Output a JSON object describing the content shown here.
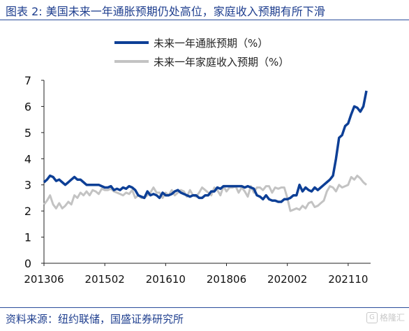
{
  "header": {
    "title": "图表 2:  美国未来一年通胀预期仍处高位，家庭收入预期有所下滑"
  },
  "footer": {
    "source": "资料来源：纽约联储，国盛证券研究所",
    "watermark_text": "格隆汇",
    "watermark_icon": "G"
  },
  "colors": {
    "title": "#1f3f8f",
    "inflation": "#0d3f96",
    "income": "#c3c3c3"
  },
  "chart_data": {
    "type": "line",
    "title": "",
    "xlabel": "",
    "ylabel": "",
    "ylim": [
      0,
      7
    ],
    "y_ticks": [
      0,
      1,
      2,
      3,
      4,
      5,
      6,
      7
    ],
    "grid": false,
    "legend_position": "top",
    "x_start": "2013-06",
    "x_end": "2022-04",
    "x_tick_labels": [
      "201306",
      "201502",
      "201610",
      "201806",
      "202002",
      "202110"
    ],
    "x": [
      "2013-06",
      "2013-07",
      "2013-08",
      "2013-09",
      "2013-10",
      "2013-11",
      "2013-12",
      "2014-01",
      "2014-02",
      "2014-03",
      "2014-04",
      "2014-05",
      "2014-06",
      "2014-07",
      "2014-08",
      "2014-09",
      "2014-10",
      "2014-11",
      "2014-12",
      "2015-01",
      "2015-02",
      "2015-03",
      "2015-04",
      "2015-05",
      "2015-06",
      "2015-07",
      "2015-08",
      "2015-09",
      "2015-10",
      "2015-11",
      "2015-12",
      "2016-01",
      "2016-02",
      "2016-03",
      "2016-04",
      "2016-05",
      "2016-06",
      "2016-07",
      "2016-08",
      "2016-09",
      "2016-10",
      "2016-11",
      "2016-12",
      "2017-01",
      "2017-02",
      "2017-03",
      "2017-04",
      "2017-05",
      "2017-06",
      "2017-07",
      "2017-08",
      "2017-09",
      "2017-10",
      "2017-11",
      "2017-12",
      "2018-01",
      "2018-02",
      "2018-03",
      "2018-04",
      "2018-05",
      "2018-06",
      "2018-07",
      "2018-08",
      "2018-09",
      "2018-10",
      "2018-11",
      "2018-12",
      "2019-01",
      "2019-02",
      "2019-03",
      "2019-04",
      "2019-05",
      "2019-06",
      "2019-07",
      "2019-08",
      "2019-09",
      "2019-10",
      "2019-11",
      "2019-12",
      "2020-01",
      "2020-02",
      "2020-03",
      "2020-04",
      "2020-05",
      "2020-06",
      "2020-07",
      "2020-08",
      "2020-09",
      "2020-10",
      "2020-11",
      "2020-12",
      "2021-01",
      "2021-02",
      "2021-03",
      "2021-04",
      "2021-05",
      "2021-06",
      "2021-07",
      "2021-08",
      "2021-09",
      "2021-10",
      "2021-11",
      "2021-12",
      "2022-01",
      "2022-02",
      "2022-03",
      "2022-04"
    ],
    "series": [
      {
        "name": "未来一年通胀预期（%）",
        "color": "#0d3f96",
        "values": [
          3.1,
          3.2,
          3.35,
          3.3,
          3.15,
          3.2,
          3.1,
          3.0,
          3.1,
          3.2,
          3.3,
          3.2,
          3.2,
          3.1,
          3.0,
          3.0,
          3.0,
          3.0,
          3.0,
          2.95,
          2.9,
          2.9,
          2.95,
          2.8,
          2.85,
          2.8,
          2.9,
          2.85,
          2.95,
          2.9,
          2.8,
          2.6,
          2.55,
          2.5,
          2.75,
          2.6,
          2.65,
          2.6,
          2.5,
          2.7,
          2.6,
          2.6,
          2.65,
          2.75,
          2.8,
          2.7,
          2.65,
          2.6,
          2.55,
          2.6,
          2.6,
          2.5,
          2.5,
          2.6,
          2.6,
          2.75,
          2.75,
          2.9,
          2.85,
          2.95,
          2.95,
          2.95,
          2.95,
          2.95,
          2.95,
          2.95,
          2.9,
          2.95,
          2.9,
          2.85,
          2.6,
          2.55,
          2.45,
          2.6,
          2.45,
          2.4,
          2.4,
          2.35,
          2.35,
          2.45,
          2.45,
          2.5,
          2.6,
          2.6,
          3.0,
          2.75,
          2.9,
          2.8,
          2.75,
          2.9,
          2.8,
          2.9,
          3.0,
          3.1,
          3.2,
          3.35,
          4.0,
          4.8,
          4.9,
          5.25,
          5.35,
          5.7,
          6.0,
          5.95,
          5.8,
          6.0,
          6.6
        ]
      },
      {
        "name": "未来一年家庭收入预期（%）",
        "color": "#c3c3c3",
        "values": [
          2.25,
          2.4,
          2.6,
          2.25,
          2.1,
          2.3,
          2.1,
          2.2,
          2.35,
          2.25,
          2.6,
          2.5,
          2.7,
          2.6,
          2.75,
          2.6,
          2.8,
          2.75,
          2.65,
          2.85,
          2.8,
          2.8,
          2.85,
          2.75,
          2.7,
          2.65,
          2.6,
          2.7,
          2.65,
          2.8,
          2.5,
          2.6,
          2.5,
          2.5,
          2.6,
          2.7,
          2.9,
          2.7,
          2.7,
          2.5,
          2.7,
          2.6,
          2.8,
          2.6,
          2.7,
          2.8,
          2.75,
          2.55,
          2.8,
          2.6,
          2.55,
          2.7,
          2.9,
          2.8,
          2.7,
          2.6,
          2.9,
          2.8,
          2.6,
          2.95,
          2.75,
          2.9,
          2.9,
          2.95,
          2.7,
          2.9,
          2.75,
          2.55,
          2.95,
          2.7,
          2.9,
          2.9,
          2.8,
          2.95,
          2.95,
          2.7,
          2.9,
          2.85,
          2.9,
          2.9,
          2.5,
          2.0,
          2.05,
          2.1,
          2.05,
          2.2,
          2.1,
          2.3,
          2.35,
          2.15,
          2.2,
          2.3,
          2.4,
          2.75,
          2.95,
          2.9,
          2.75,
          3.0,
          2.9,
          2.95,
          3.0,
          3.3,
          3.2,
          3.35,
          3.25,
          3.1,
          3.0
        ]
      }
    ]
  }
}
